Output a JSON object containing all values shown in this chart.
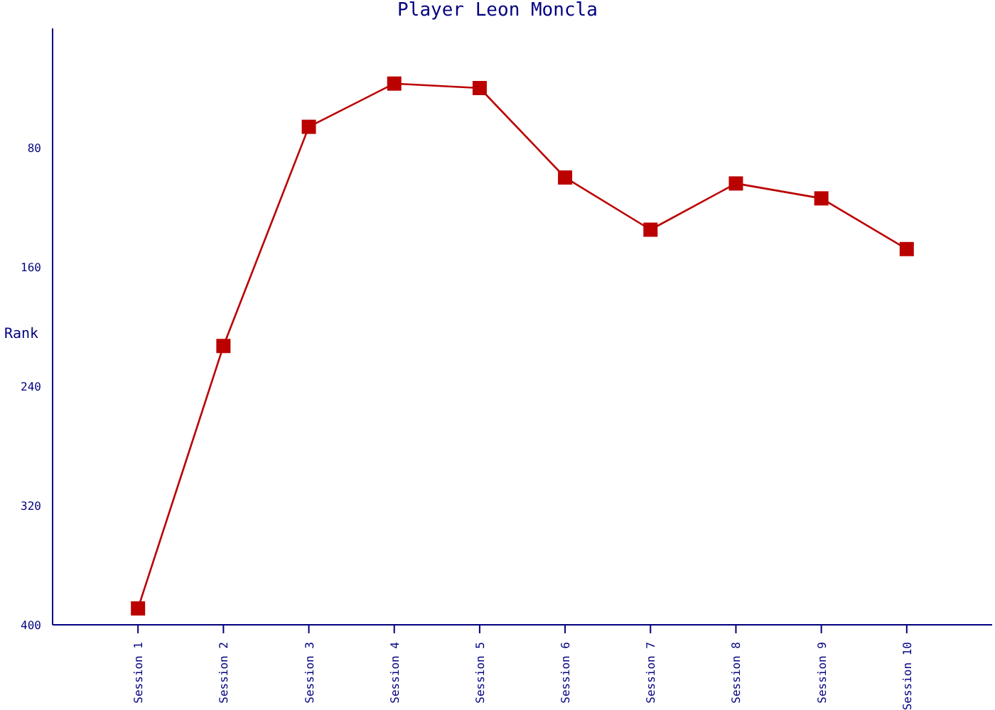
{
  "chart_data": {
    "type": "line",
    "title": "Player Leon Moncla",
    "ylabel": "Rank",
    "categories": [
      "Session 1",
      "Session 2",
      "Session 3",
      "Session 4",
      "Session 5",
      "Session 6",
      "Session 7",
      "Session 8",
      "Session 9",
      "Session 10"
    ],
    "series": [
      {
        "color": "#bb0000",
        "values": [
          389,
          213,
          66,
          37,
          40,
          100,
          135,
          104,
          114,
          148
        ]
      }
    ],
    "ylim": [
      400,
      0
    ],
    "yticks": [
      80,
      160,
      240,
      320,
      400
    ],
    "grid": false,
    "legend": false,
    "marker": "square",
    "line_style": "solid"
  }
}
